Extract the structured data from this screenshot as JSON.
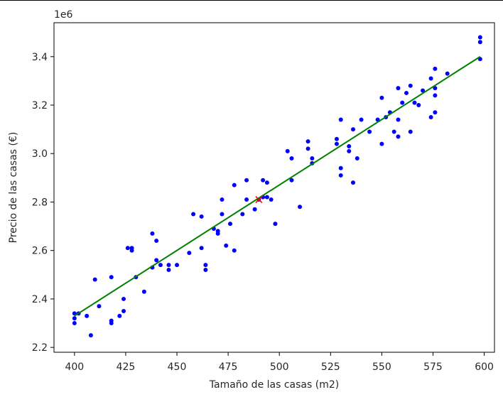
{
  "chart_data": {
    "type": "scatter",
    "xlabel": "Tamaño de las casas (m2)",
    "ylabel": "Precio de las casas (€)",
    "offset_text": "1e6",
    "xlim": [
      390,
      605
    ],
    "ylim": [
      2.18,
      3.54
    ],
    "x_ticks": [
      400,
      425,
      450,
      475,
      500,
      525,
      550,
      575,
      600
    ],
    "y_ticks": [
      2.2,
      2.4,
      2.6,
      2.8,
      3.0,
      3.2,
      3.4
    ],
    "grid": false,
    "colors": {
      "points": "#0000ff",
      "line": "#008000",
      "marker": "#ff0000",
      "axes": "#000000"
    },
    "series": [
      {
        "kind": "scatter",
        "points": [
          [
            400,
            2.3
          ],
          [
            400,
            2.32
          ],
          [
            400,
            2.34
          ],
          [
            402,
            2.34
          ],
          [
            406,
            2.33
          ],
          [
            408,
            2.25
          ],
          [
            410,
            2.48
          ],
          [
            412,
            2.37
          ],
          [
            418,
            2.3
          ],
          [
            418,
            2.31
          ],
          [
            418,
            2.49
          ],
          [
            422,
            2.33
          ],
          [
            424,
            2.35
          ],
          [
            424,
            2.4
          ],
          [
            426,
            2.61
          ],
          [
            428,
            2.6
          ],
          [
            428,
            2.61
          ],
          [
            430,
            2.49
          ],
          [
            434,
            2.43
          ],
          [
            438,
            2.53
          ],
          [
            438,
            2.67
          ],
          [
            440,
            2.56
          ],
          [
            440,
            2.64
          ],
          [
            442,
            2.54
          ],
          [
            446,
            2.52
          ],
          [
            446,
            2.54
          ],
          [
            450,
            2.54
          ],
          [
            456,
            2.59
          ],
          [
            458,
            2.75
          ],
          [
            462,
            2.61
          ],
          [
            462,
            2.74
          ],
          [
            464,
            2.52
          ],
          [
            464,
            2.54
          ],
          [
            468,
            2.69
          ],
          [
            470,
            2.67
          ],
          [
            470,
            2.68
          ],
          [
            472,
            2.75
          ],
          [
            472,
            2.81
          ],
          [
            474,
            2.62
          ],
          [
            476,
            2.71
          ],
          [
            478,
            2.6
          ],
          [
            478,
            2.87
          ],
          [
            482,
            2.75
          ],
          [
            484,
            2.81
          ],
          [
            484,
            2.89
          ],
          [
            488,
            2.77
          ],
          [
            490,
            2.81
          ],
          [
            492,
            2.82
          ],
          [
            492,
            2.89
          ],
          [
            494,
            2.82
          ],
          [
            494,
            2.88
          ],
          [
            496,
            2.81
          ],
          [
            498,
            2.71
          ],
          [
            504,
            3.01
          ],
          [
            506,
            2.89
          ],
          [
            506,
            2.98
          ],
          [
            510,
            2.78
          ],
          [
            514,
            3.02
          ],
          [
            514,
            3.05
          ],
          [
            516,
            2.96
          ],
          [
            516,
            2.98
          ],
          [
            528,
            3.04
          ],
          [
            528,
            3.06
          ],
          [
            530,
            2.91
          ],
          [
            530,
            2.94
          ],
          [
            530,
            3.14
          ],
          [
            534,
            3.01
          ],
          [
            534,
            3.03
          ],
          [
            536,
            2.88
          ],
          [
            536,
            3.1
          ],
          [
            538,
            2.98
          ],
          [
            540,
            3.14
          ],
          [
            544,
            3.09
          ],
          [
            548,
            3.14
          ],
          [
            550,
            3.04
          ],
          [
            550,
            3.23
          ],
          [
            552,
            3.15
          ],
          [
            554,
            3.17
          ],
          [
            556,
            3.09
          ],
          [
            558,
            3.07
          ],
          [
            558,
            3.14
          ],
          [
            558,
            3.27
          ],
          [
            560,
            3.21
          ],
          [
            562,
            3.25
          ],
          [
            564,
            3.09
          ],
          [
            564,
            3.28
          ],
          [
            566,
            3.21
          ],
          [
            568,
            3.2
          ],
          [
            570,
            3.26
          ],
          [
            574,
            3.15
          ],
          [
            574,
            3.31
          ],
          [
            576,
            3.17
          ],
          [
            576,
            3.24
          ],
          [
            576,
            3.27
          ],
          [
            576,
            3.35
          ],
          [
            582,
            3.33
          ],
          [
            598,
            3.39
          ],
          [
            598,
            3.46
          ],
          [
            598,
            3.48
          ]
        ]
      },
      {
        "kind": "line",
        "points": [
          [
            400,
            2.33
          ],
          [
            598,
            3.4
          ]
        ]
      },
      {
        "kind": "marker",
        "symbol": "x",
        "points": [
          [
            490,
            2.81
          ]
        ]
      }
    ]
  }
}
